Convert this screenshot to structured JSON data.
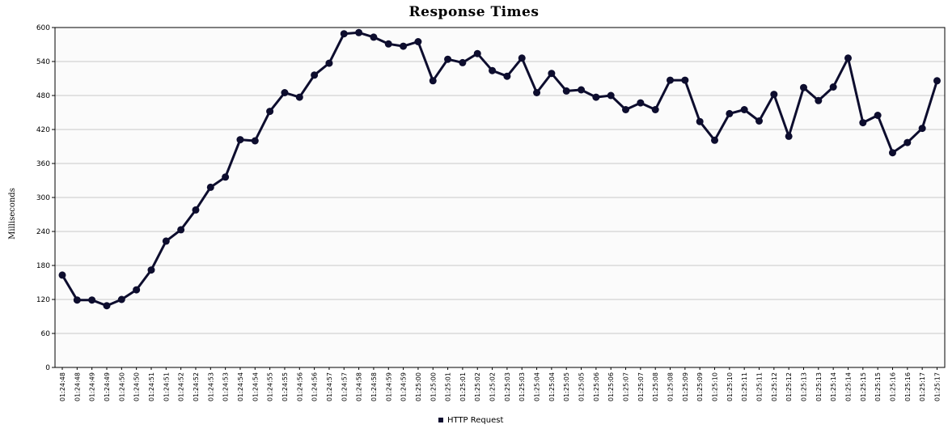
{
  "chart_data": {
    "type": "line",
    "title": "Response Times",
    "xlabel": "",
    "ylabel": "Milliseconds",
    "ylim": [
      0,
      600
    ],
    "yticks": [
      0,
      60,
      120,
      180,
      240,
      300,
      360,
      420,
      480,
      540,
      600
    ],
    "grid": true,
    "legend_position": "bottom-center",
    "categories": [
      "01:24:48",
      "01:24:48",
      "01:24:49",
      "01:24:49",
      "01:24:50",
      "01:24:50",
      "01:24:51",
      "01:24:51",
      "01:24:52",
      "01:24:52",
      "01:24:53",
      "01:24:53",
      "01:24:54",
      "01:24:54",
      "01:24:55",
      "01:24:55",
      "01:24:56",
      "01:24:56",
      "01:24:57",
      "01:24:57",
      "01:24:58",
      "01:24:58",
      "01:24:59",
      "01:24:59",
      "01:25:00",
      "01:25:00",
      "01:25:01",
      "01:25:01",
      "01:25:02",
      "01:25:02",
      "01:25:03",
      "01:25:03",
      "01:25:04",
      "01:25:04",
      "01:25:05",
      "01:25:05",
      "01:25:06",
      "01:25:06",
      "01:25:07",
      "01:25:07",
      "01:25:08",
      "01:25:08",
      "01:25:09",
      "01:25:09",
      "01:25:10",
      "01:25:10",
      "01:25:11",
      "01:25:11",
      "01:25:12",
      "01:25:12",
      "01:25:13",
      "01:25:13",
      "01:25:14",
      "01:25:14",
      "01:25:15",
      "01:25:15",
      "01:25:16",
      "01:25:16",
      "01:25:17",
      "01:25:17"
    ],
    "series": [
      {
        "name": "HTTP Request",
        "color": "#0d0d2e",
        "values": [
          163,
          119,
          119,
          109,
          120,
          137,
          172,
          223,
          243,
          278,
          318,
          336,
          402,
          400,
          452,
          485,
          477,
          516,
          537,
          589,
          591,
          583,
          571,
          567,
          575,
          506,
          544,
          538,
          554,
          524,
          514,
          546,
          485,
          519,
          488,
          490,
          477,
          480,
          455,
          467,
          455,
          507,
          507,
          434,
          401,
          448,
          455,
          435,
          482,
          408,
          494,
          471,
          495,
          546,
          432,
          445,
          379,
          397,
          422,
          506
        ]
      }
    ]
  }
}
